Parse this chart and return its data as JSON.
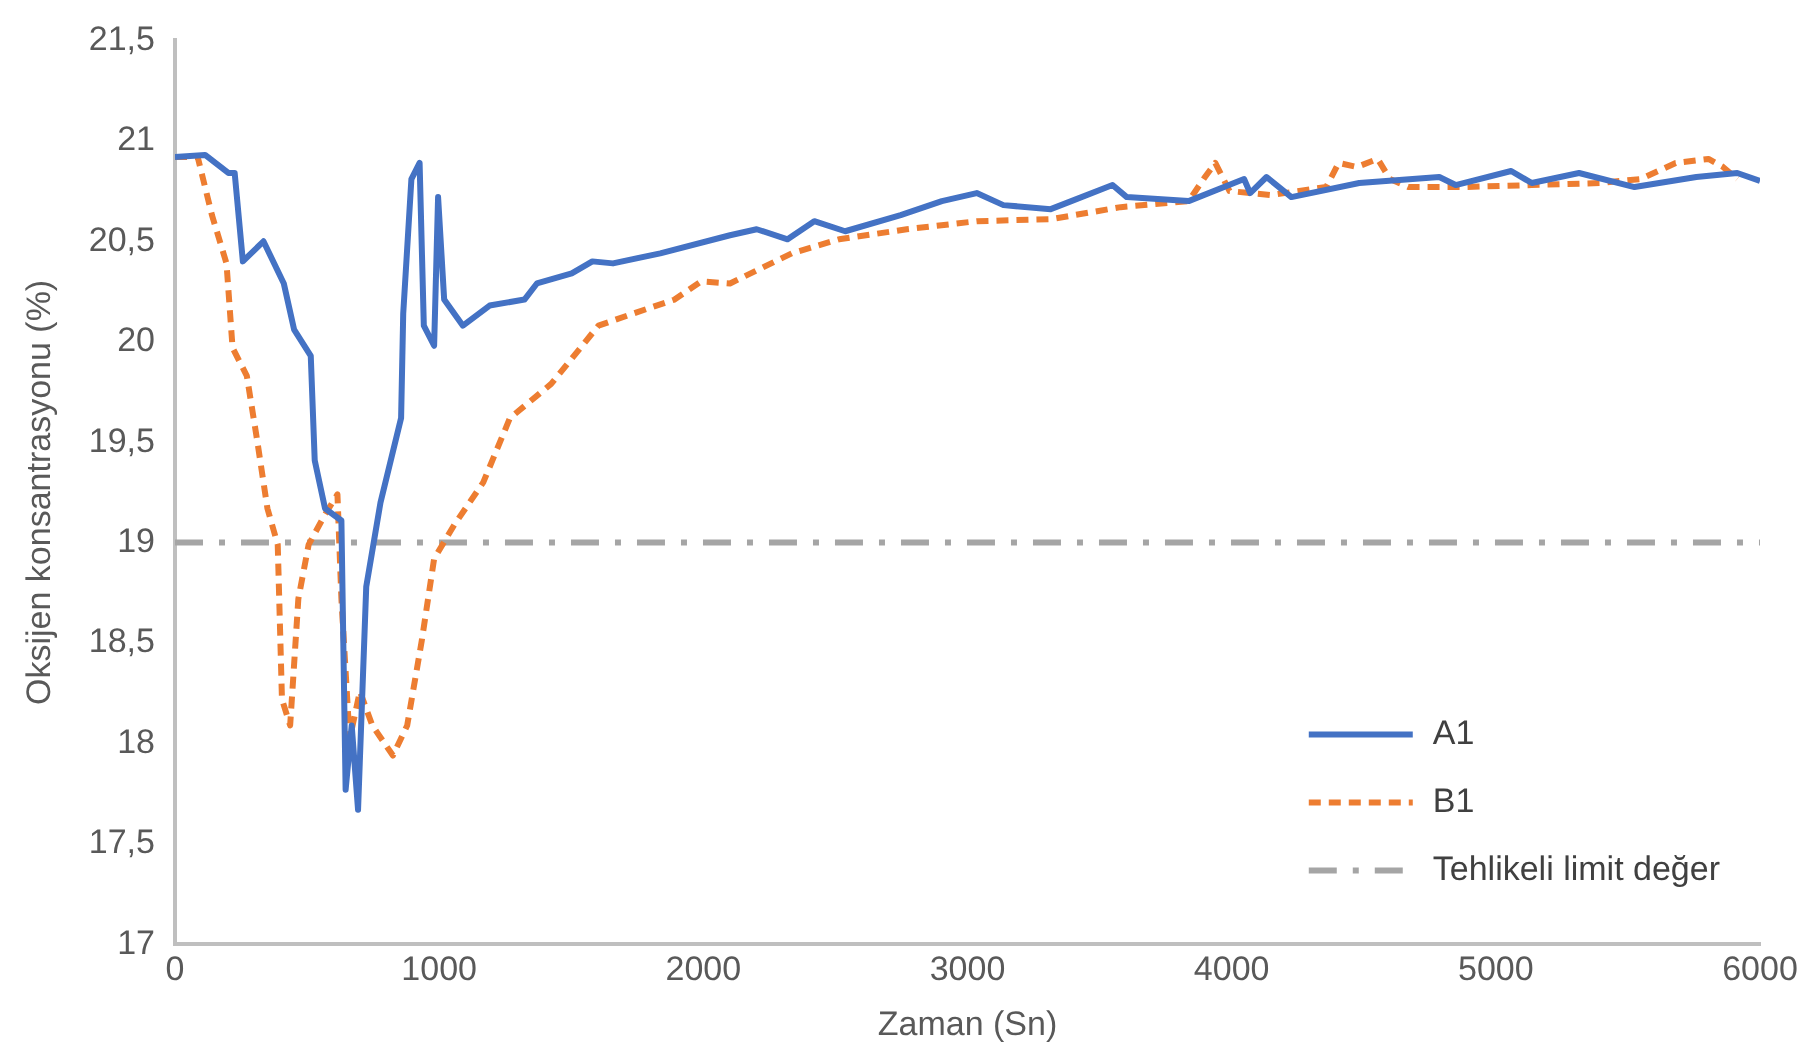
{
  "chart_data": {
    "type": "line",
    "xlabel": "Zaman (Sn)",
    "ylabel": "Oksijen konsantrasyonu (%)",
    "xlim": [
      0,
      6000
    ],
    "xticks": [
      0,
      1000,
      2000,
      3000,
      4000,
      5000,
      6000
    ],
    "ylim": [
      17,
      21.5
    ],
    "yticks": [
      {
        "value": 17,
        "label": "17"
      },
      {
        "value": 17.5,
        "label": "17,5"
      },
      {
        "value": 18,
        "label": "18"
      },
      {
        "value": 18.5,
        "label": "18,5"
      },
      {
        "value": 19,
        "label": "19"
      },
      {
        "value": 19.5,
        "label": "19,5"
      },
      {
        "value": 20,
        "label": "20"
      },
      {
        "value": 20.5,
        "label": "20,5"
      },
      {
        "value": 21,
        "label": "21"
      },
      {
        "value": 21.5,
        "label": "21,5"
      }
    ],
    "grid": false,
    "legend": "bottom right",
    "marker": "none",
    "series": [
      {
        "name": "A1",
        "color": "#4472c4",
        "line_style": "solid",
        "x": [
          0,
          114,
          202,
          226,
          257,
          335,
          412,
          451,
          514,
          529,
          568,
          630,
          646,
          669,
          693,
          724,
          778,
          856,
          864,
          895,
          926,
          942,
          981,
          996,
          1019,
          1090,
          1191,
          1323,
          1370,
          1502,
          1580,
          1658,
          1837,
          2101,
          2202,
          2319,
          2420,
          2537,
          2747,
          2903,
          3035,
          3136,
          3315,
          3393,
          3549,
          3603,
          3837,
          4047,
          4070,
          4132,
          4226,
          4483,
          4786,
          4848,
          5058,
          5136,
          5315,
          5525,
          5759,
          5914,
          6000
        ],
        "values": [
          20.92,
          20.93,
          20.84,
          20.84,
          20.4,
          20.5,
          20.29,
          20.06,
          19.93,
          19.41,
          19.17,
          19.11,
          17.77,
          18.09,
          17.67,
          18.78,
          19.2,
          19.62,
          20.14,
          20.81,
          20.89,
          20.08,
          19.98,
          20.72,
          20.21,
          20.08,
          20.18,
          20.21,
          20.29,
          20.34,
          20.4,
          20.39,
          20.44,
          20.53,
          20.56,
          20.51,
          20.6,
          20.55,
          20.63,
          20.7,
          20.74,
          20.68,
          20.66,
          20.7,
          20.78,
          20.72,
          20.7,
          20.81,
          20.74,
          20.82,
          20.72,
          20.79,
          20.82,
          20.78,
          20.85,
          20.79,
          20.84,
          20.77,
          20.82,
          20.84,
          20.8
        ]
      },
      {
        "name": "B1",
        "color": "#ed7d31",
        "line_style": "dashed",
        "x": [
          0,
          86,
          140,
          195,
          218,
          272,
          311,
          350,
          389,
          405,
          436,
          467,
          506,
          568,
          615,
          630,
          661,
          700,
          747,
          825,
          879,
          934,
          981,
          1058,
          1167,
          1268,
          1424,
          1603,
          1712,
          1891,
          1992,
          2101,
          2335,
          2514,
          2770,
          3035,
          3315,
          3580,
          3837,
          3899,
          3938,
          3992,
          4148,
          4358,
          4405,
          4475,
          4553,
          4599,
          4669,
          4872,
          5136,
          5393,
          5549,
          5681,
          5805,
          5860,
          5914
        ],
        "values": [
          20.92,
          20.92,
          20.63,
          20.39,
          19.97,
          19.83,
          19.51,
          19.17,
          18.99,
          18.22,
          18.09,
          18.72,
          18.99,
          19.14,
          19.24,
          18.72,
          18.02,
          18.26,
          18.09,
          17.94,
          18.09,
          18.51,
          18.92,
          19.09,
          19.3,
          19.62,
          19.79,
          20.08,
          20.13,
          20.21,
          20.3,
          20.29,
          20.44,
          20.51,
          20.56,
          20.6,
          20.61,
          20.67,
          20.7,
          20.82,
          20.89,
          20.75,
          20.73,
          20.77,
          20.89,
          20.87,
          20.91,
          20.81,
          20.77,
          20.77,
          20.78,
          20.79,
          20.81,
          20.89,
          20.91,
          20.87,
          20.81
        ]
      }
    ],
    "ref_lines": [
      {
        "axis": "y",
        "value": 19,
        "label": "Tehlikeli limit değer",
        "color": "#a5a5a5",
        "line_style": "dashed"
      }
    ]
  }
}
